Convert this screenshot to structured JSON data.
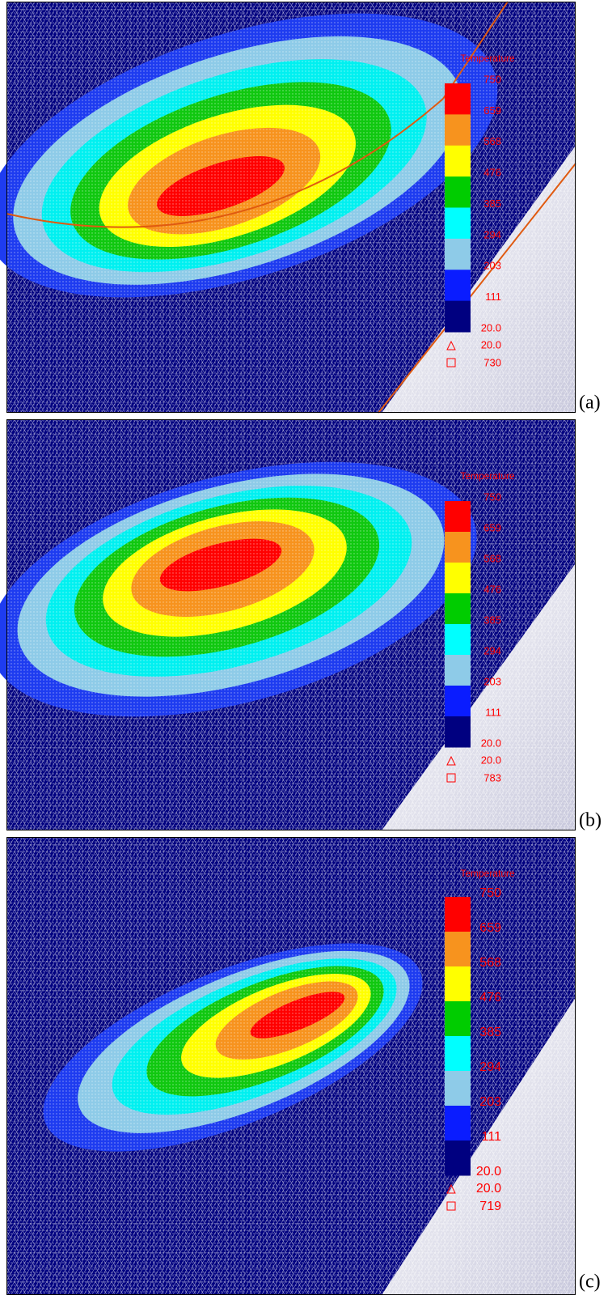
{
  "panels": [
    {
      "label": "(a)",
      "legend": {
        "title": "Temperature",
        "levels": [
          "750",
          "659",
          "568",
          "476",
          "385",
          "294",
          "203",
          "111",
          "20.0"
        ],
        "min": "20.0",
        "max": "730"
      }
    },
    {
      "label": "(b)",
      "legend": {
        "title": "Temperature",
        "levels": [
          "750",
          "659",
          "568",
          "476",
          "385",
          "294",
          "203",
          "111",
          "20.0"
        ],
        "min": "20.0",
        "max": "783"
      }
    },
    {
      "label": "(c)",
      "legend": {
        "title": "Temperature",
        "levels": [
          "750",
          "659",
          "568",
          "476",
          "385",
          "294",
          "203",
          "111",
          "20.0"
        ],
        "min": "20.0",
        "max": "719"
      }
    }
  ]
}
